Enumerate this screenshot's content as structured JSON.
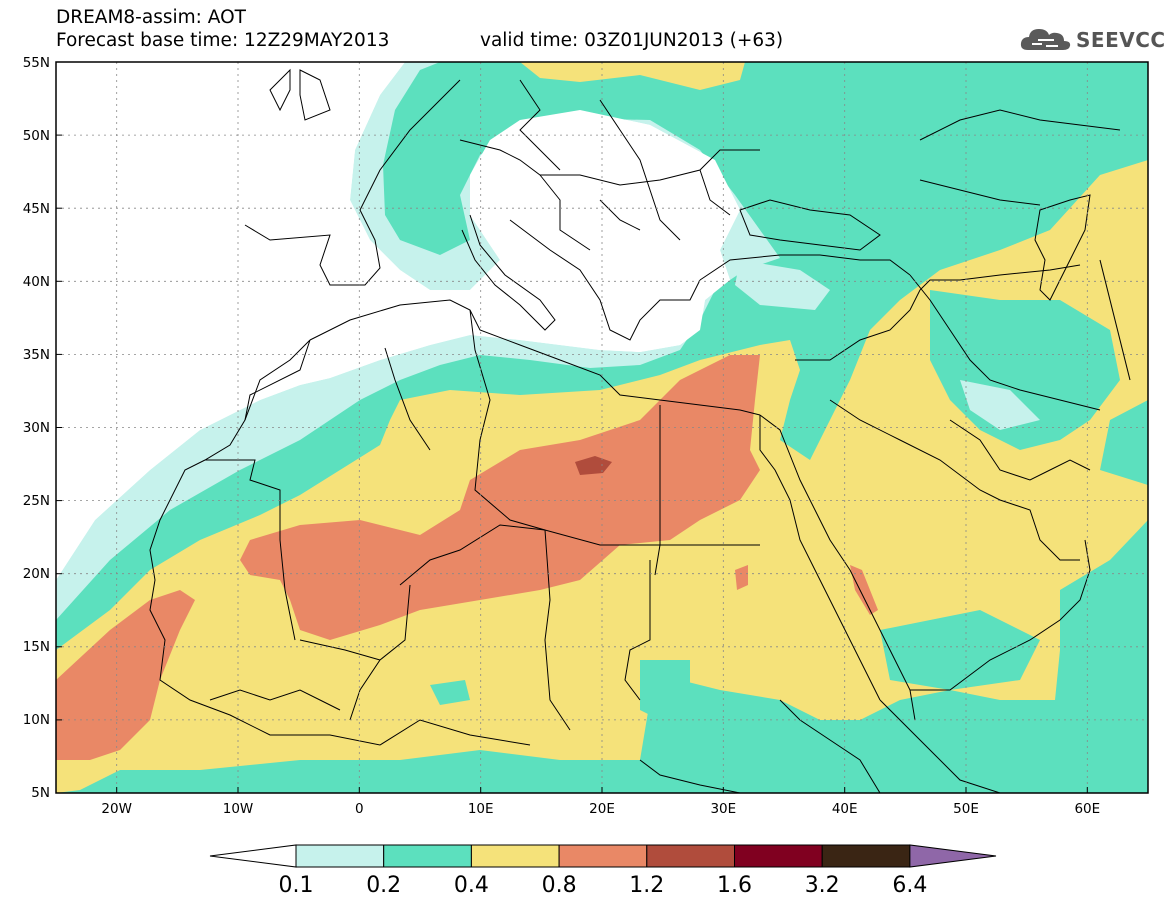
{
  "header": {
    "title": "DREAM8-assim: AOT",
    "base_time": "Forecast base time: 12Z29MAY2013",
    "valid_time": "valid time: 03Z01JUN2013 (+63)"
  },
  "logo": {
    "text": "SEEVCCC",
    "icon": "cloud-icon"
  },
  "map": {
    "lon_range": [
      -25,
      65
    ],
    "lat_range": [
      5,
      55
    ],
    "lat_labels": [
      "55N",
      "50N",
      "45N",
      "40N",
      "35N",
      "30N",
      "25N",
      "20N",
      "15N",
      "10N",
      "5N"
    ],
    "lon_labels": [
      "20W",
      "10W",
      "0",
      "10E",
      "20E",
      "30E",
      "40E",
      "50E",
      "60E"
    ]
  },
  "colorbar": {
    "labels": [
      "0.1",
      "0.2",
      "0.4",
      "0.8",
      "1.2",
      "1.6",
      "3.2",
      "6.4"
    ],
    "colors": [
      "#ffffff",
      "#c6f2ec",
      "#5ce0be",
      "#f5e27a",
      "#e98866",
      "#b04c3c",
      "#800020",
      "#3a2514",
      "#8f67a8"
    ]
  }
}
